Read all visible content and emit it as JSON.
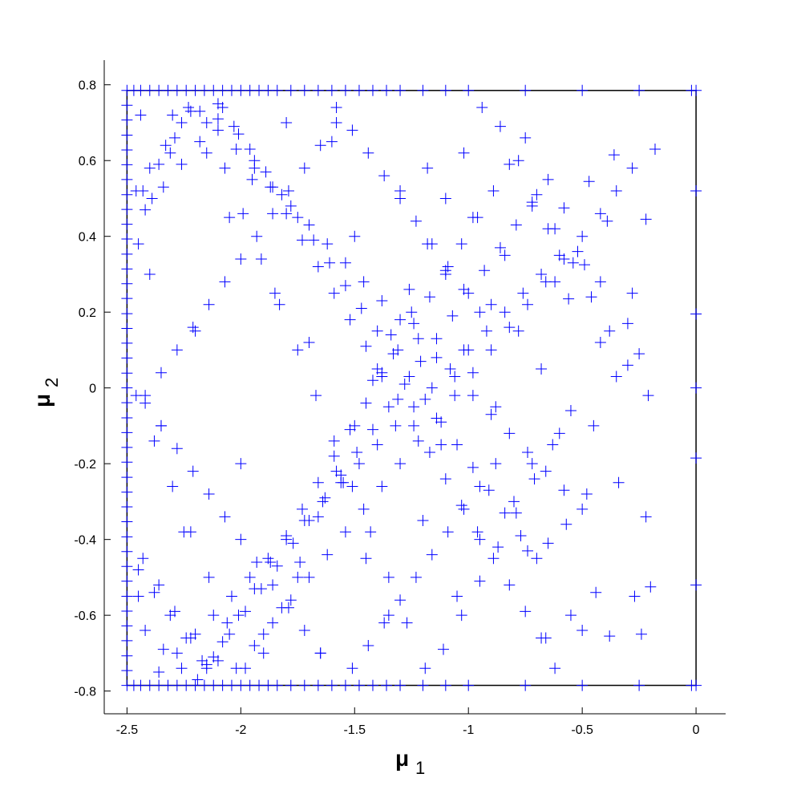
{
  "chart_data": {
    "type": "scatter",
    "title": "",
    "xlabel": {
      "symbol": "μ",
      "subscript": "1"
    },
    "ylabel": {
      "symbol": "μ",
      "subscript": "2"
    },
    "xlim": [
      -2.6,
      0.13
    ],
    "ylim": [
      -0.86,
      0.865
    ],
    "x_ticks": [
      -2.5,
      -2,
      -1.5,
      -1,
      -0.5,
      0
    ],
    "x_tick_labels": [
      "-2.5",
      "-2",
      "-1.5",
      "-1",
      "-0.5",
      "0"
    ],
    "y_ticks": [
      -0.8,
      -0.6,
      -0.4,
      -0.2,
      0,
      0.2,
      0.4,
      0.6,
      0.8
    ],
    "y_tick_labels": [
      "-0.8",
      "-0.6",
      "-0.4",
      "-0.2",
      "0",
      "0.2",
      "0.4",
      "0.6",
      "0.8"
    ],
    "grid": false,
    "marker": "+",
    "marker_color": "#0000ff",
    "domain_box": {
      "x": [
        -2.5,
        0
      ],
      "y": [
        -0.785,
        0.785
      ],
      "color": "#000000"
    },
    "series": [
      {
        "marker": "+",
        "x": [
          -2.5,
          -2.5,
          -2.5,
          -2.5,
          -2.5,
          -2.5,
          -2.5,
          -2.5,
          -2.5,
          -2.5,
          -2.5,
          -2.5,
          -2.5,
          -2.5,
          -2.5,
          -2.5,
          -2.5,
          -2.5,
          -2.5,
          -2.5,
          -2.5,
          -2.5,
          -2.5,
          -2.5,
          -2.5,
          -2.5,
          -2.5,
          -2.5,
          -2.5,
          -2.5,
          -2.5,
          -2.5,
          -2.5,
          -2.5,
          -2.5,
          -2.5,
          -2.5,
          -2.5,
          -2.5,
          -2.5,
          -2.5,
          -2.47,
          -2.44,
          -2.4,
          -2.36,
          -2.32,
          -2.28,
          -2.24,
          -2.2,
          -2.16,
          -2.12,
          -2.08,
          -2.04,
          -2.0,
          -1.96,
          -1.92,
          -1.88,
          -1.84,
          -1.78,
          -1.72,
          -1.66,
          -1.6,
          -1.54,
          -1.48,
          -1.42,
          -1.36,
          -1.3,
          -1.2,
          -1.1,
          -1.0,
          -0.75,
          -0.5,
          -0.25,
          -0.02,
          -2.47,
          -2.44,
          -2.4,
          -2.36,
          -2.32,
          -2.28,
          -2.24,
          -2.2,
          -2.16,
          -2.12,
          -2.08,
          -2.04,
          -2.0,
          -1.96,
          -1.92,
          -1.88,
          -1.84,
          -1.78,
          -1.72,
          -1.66,
          -1.6,
          -1.54,
          -1.48,
          -1.42,
          -1.36,
          -1.3,
          -1.2,
          -1.1,
          -1.0,
          -0.75,
          -0.5,
          -0.25,
          -0.02,
          0.0,
          0.0,
          0.0,
          0.0,
          0.0,
          0.0,
          0.0,
          -0.18,
          -0.22,
          -0.28,
          -0.36,
          -0.39,
          -0.49,
          -0.47,
          -0.21,
          -0.42,
          -0.56,
          -0.58,
          -0.65,
          -0.72,
          -0.22,
          -0.34,
          -0.48,
          -0.57,
          -0.65,
          -0.74,
          -0.2,
          -0.27,
          -0.44,
          -0.55,
          -0.66,
          -0.38,
          -0.24,
          -0.5,
          -0.62,
          -0.25,
          -0.3,
          -0.35,
          -0.42,
          -0.45,
          -0.52,
          -0.6,
          -0.62,
          -0.68,
          -0.72,
          -0.78,
          -0.8,
          -0.84,
          -0.88,
          -0.9,
          -0.95,
          -0.98,
          -1.02,
          -1.05,
          -1.1,
          -1.12,
          -1.18,
          -1.2,
          -1.25,
          -1.3,
          -1.35,
          -1.4,
          -1.45,
          -1.5,
          -1.55,
          -1.6,
          -1.65,
          -1.7,
          -1.75,
          -1.8,
          -1.85,
          -1.9,
          -1.95,
          -2.0,
          -2.05,
          -2.1,
          -2.15,
          -2.2,
          -2.25,
          -2.3,
          -2.35,
          -2.4,
          -2.45,
          -0.3,
          -0.38,
          -0.46,
          -0.54,
          -0.62,
          -0.7,
          -0.78,
          -0.86,
          -0.94,
          -1.02,
          -1.1,
          -1.18,
          -1.26,
          -1.34,
          -1.42,
          -1.5,
          -1.58,
          -1.66,
          -1.74,
          -1.82,
          -1.9,
          -1.98,
          -2.06,
          -2.14,
          -2.22,
          -2.3,
          -2.38,
          -2.46,
          -0.55,
          -0.63,
          -0.71,
          -0.79,
          -0.87,
          -0.95,
          -1.03,
          -1.11,
          -1.19,
          -1.27,
          -1.35,
          -1.43,
          -1.51,
          -1.59,
          -1.67,
          -1.75,
          -1.83,
          -1.91,
          -1.99,
          -2.07,
          -2.15,
          -2.23,
          -2.31,
          -2.39,
          -2.45,
          -0.65,
          -0.72,
          -0.79,
          -0.86,
          -0.93,
          -1.0,
          -1.07,
          -1.14,
          -1.21,
          -1.28,
          -1.35,
          -1.42,
          -1.49,
          -1.56,
          -1.63,
          -1.7,
          -1.77,
          -1.84,
          -1.91,
          -1.98,
          -2.05,
          -2.12,
          -2.19,
          -2.26,
          -2.33,
          -2.4,
          -2.46,
          -0.7,
          -0.77,
          -0.84,
          -0.91,
          -0.98,
          -1.05,
          -1.12,
          -1.19,
          -1.26,
          -1.33,
          -1.4,
          -1.47,
          -1.54,
          -1.61,
          -1.68,
          -1.75,
          -1.82,
          -1.89,
          -1.96,
          -2.03,
          -2.1,
          -2.17,
          -2.24,
          -2.31,
          -2.38,
          -2.45,
          -0.75,
          -0.82,
          -0.89,
          -0.96,
          -1.03,
          -1.1,
          -1.17,
          -1.24,
          -1.31,
          -1.38,
          -1.45,
          -1.52,
          -1.59,
          -1.66,
          -1.73,
          -1.8,
          -1.87,
          -1.94,
          -2.01,
          -2.08,
          -2.15,
          -2.22,
          -2.29,
          -2.36,
          -2.43,
          -0.68,
          -0.75,
          -0.82,
          -0.89,
          -0.96,
          -1.03,
          -1.1,
          -1.17,
          -1.24,
          -1.31,
          -1.38,
          -1.45,
          -1.52,
          -1.59,
          -1.66,
          -1.73,
          -1.8,
          -1.87,
          -1.94,
          -2.01,
          -2.08,
          -2.15,
          -2.22,
          -2.29,
          -2.36,
          -2.43,
          -0.6,
          -0.68,
          -0.76,
          -0.84,
          -0.92,
          -1.0,
          -1.08,
          -1.16,
          -1.24,
          -1.32,
          -1.4,
          -1.48,
          -1.56,
          -1.64,
          -1.72,
          -1.8,
          -1.88,
          -1.96,
          -2.04,
          -2.12,
          -2.2,
          -2.28,
          -2.36,
          -2.44,
          -0.5,
          -0.58,
          -0.66,
          -0.74,
          -0.82,
          -0.9,
          -0.98,
          -1.06,
          -1.14,
          -1.22,
          -1.3,
          -1.38,
          -1.46,
          -1.54,
          -1.62,
          -1.7,
          -1.78,
          -1.86,
          -1.94,
          -2.02,
          -2.1,
          -2.18,
          -2.26,
          -2.34,
          -2.42,
          -0.28,
          -0.35,
          -0.42,
          -0.5,
          -0.58,
          -0.66,
          -0.74,
          -0.82,
          -0.9,
          -0.98,
          -1.06,
          -1.14,
          -1.22,
          -1.3,
          -1.38,
          -1.46,
          -1.54,
          -1.62,
          -1.7,
          -1.78,
          -1.86,
          -1.94,
          -2.02,
          -2.1,
          -2.18,
          -2.26,
          -2.34,
          -2.42,
          -0.95,
          -1.02,
          -1.09,
          -1.16,
          -1.23,
          -1.3,
          -1.37,
          -1.44,
          -1.51,
          -1.58,
          -1.65,
          -1.72,
          -1.79,
          -1.86,
          -1.93,
          -2.0,
          -2.07,
          -2.14,
          -2.21,
          -2.28,
          -2.35,
          -2.42,
          -0.88,
          -0.95,
          -1.02,
          -1.09,
          -1.16,
          -1.23,
          -1.3,
          -1.37,
          -1.44,
          -1.51,
          -1.58,
          -1.65,
          -1.72,
          -1.79,
          -1.86,
          -1.93,
          -2.0,
          -2.07,
          -2.14,
          -2.21,
          -2.28,
          -2.35,
          -2.42
        ],
        "y": [
          0.785,
          0.746,
          0.707,
          0.667,
          0.628,
          0.589,
          0.55,
          0.51,
          0.471,
          0.432,
          0.393,
          0.353,
          0.314,
          0.275,
          0.236,
          0.196,
          0.157,
          0.118,
          0.079,
          0.039,
          0.0,
          -0.039,
          -0.079,
          -0.118,
          -0.157,
          -0.196,
          -0.236,
          -0.275,
          -0.314,
          -0.353,
          -0.393,
          -0.432,
          -0.471,
          -0.51,
          -0.55,
          -0.589,
          -0.628,
          -0.667,
          -0.707,
          -0.746,
          -0.785,
          0.785,
          0.785,
          0.785,
          0.785,
          0.785,
          0.785,
          0.785,
          0.785,
          0.785,
          0.785,
          0.785,
          0.785,
          0.785,
          0.785,
          0.785,
          0.785,
          0.785,
          0.785,
          0.785,
          0.785,
          0.785,
          0.785,
          0.785,
          0.785,
          0.785,
          0.785,
          0.785,
          0.785,
          0.785,
          0.785,
          0.785,
          0.785,
          0.785,
          -0.785,
          -0.785,
          -0.785,
          -0.785,
          -0.785,
          -0.785,
          -0.785,
          -0.785,
          -0.785,
          -0.785,
          -0.785,
          -0.785,
          -0.785,
          -0.785,
          -0.785,
          -0.785,
          -0.785,
          -0.785,
          -0.785,
          -0.785,
          -0.785,
          -0.785,
          -0.785,
          -0.785,
          -0.785,
          -0.785,
          -0.785,
          -0.785,
          -0.785,
          -0.785,
          -0.785,
          -0.785,
          -0.785,
          0.785,
          0.52,
          0.195,
          -0.185,
          -0.52,
          -0.785,
          0.0,
          0.63,
          0.445,
          0.25,
          0.615,
          0.44,
          0.325,
          0.545,
          -0.02,
          0.12,
          0.235,
          0.475,
          0.42,
          0.48,
          -0.34,
          -0.25,
          -0.28,
          -0.36,
          -0.41,
          -0.43,
          -0.525,
          -0.55,
          -0.54,
          -0.6,
          -0.66,
          -0.655,
          -0.65,
          -0.64,
          -0.74,
          0.09,
          0.17,
          0.03,
          0.28,
          -0.1,
          0.36,
          -0.12,
          0.28,
          0.05,
          -0.2,
          0.15,
          -0.3,
          0.35,
          -0.05,
          0.22,
          -0.4,
          0.45,
          0.1,
          -0.55,
          0.3,
          -0.15,
          0.58,
          -0.35,
          0.2,
          0.52,
          -0.6,
          0.05,
          -0.45,
          0.4,
          -0.25,
          0.65,
          -0.7,
          0.12,
          -0.5,
          0.7,
          0.25,
          -0.65,
          0.55,
          -0.2,
          0.45,
          -0.72,
          0.62,
          0.15,
          -0.38,
          0.72,
          -0.1,
          0.3,
          -0.55,
          0.06,
          0.15,
          0.24,
          0.33,
          0.42,
          0.51,
          0.6,
          0.69,
          0.74,
          0.62,
          0.5,
          0.38,
          0.26,
          0.14,
          0.02,
          -0.1,
          -0.22,
          -0.34,
          -0.46,
          -0.58,
          -0.7,
          -0.74,
          -0.62,
          -0.5,
          -0.38,
          -0.26,
          -0.14,
          -0.02,
          -0.06,
          -0.15,
          -0.24,
          -0.33,
          -0.42,
          -0.51,
          -0.6,
          -0.69,
          -0.74,
          -0.62,
          -0.5,
          -0.38,
          -0.26,
          -0.14,
          -0.02,
          0.1,
          0.22,
          0.34,
          0.46,
          0.58,
          0.7,
          0.74,
          0.62,
          0.5,
          0.38,
          0.55,
          0.49,
          0.43,
          0.37,
          0.31,
          0.25,
          0.19,
          0.13,
          0.07,
          0.01,
          -0.05,
          -0.11,
          -0.17,
          -0.23,
          -0.29,
          -0.35,
          -0.41,
          -0.47,
          -0.53,
          -0.59,
          -0.65,
          -0.71,
          -0.77,
          0.7,
          0.64,
          0.58,
          0.52,
          -0.45,
          -0.39,
          -0.33,
          -0.27,
          -0.21,
          -0.15,
          -0.09,
          -0.03,
          0.03,
          0.09,
          0.15,
          0.21,
          0.27,
          0.33,
          0.39,
          0.45,
          0.51,
          0.57,
          0.63,
          0.69,
          0.75,
          -0.72,
          -0.66,
          -0.6,
          -0.54,
          -0.48,
          0.66,
          0.59,
          0.52,
          0.45,
          0.38,
          0.31,
          0.24,
          0.17,
          0.1,
          0.03,
          -0.04,
          -0.11,
          -0.18,
          -0.25,
          -0.32,
          -0.39,
          -0.46,
          -0.53,
          -0.6,
          -0.67,
          -0.74,
          0.73,
          0.66,
          0.59,
          0.52,
          -0.66,
          -0.59,
          -0.52,
          -0.45,
          -0.38,
          -0.31,
          -0.24,
          -0.17,
          -0.1,
          -0.03,
          0.04,
          0.11,
          0.18,
          0.25,
          0.32,
          0.39,
          0.46,
          0.53,
          0.6,
          0.67,
          0.74,
          -0.73,
          -0.66,
          -0.59,
          -0.52,
          -0.45,
          0.35,
          0.3,
          0.25,
          0.2,
          0.15,
          0.1,
          0.05,
          0.0,
          -0.05,
          -0.1,
          -0.15,
          -0.2,
          -0.25,
          -0.3,
          -0.35,
          -0.4,
          -0.45,
          -0.5,
          -0.55,
          -0.6,
          -0.65,
          -0.7,
          -0.75,
          0.72,
          -0.32,
          -0.27,
          -0.22,
          -0.17,
          -0.12,
          -0.07,
          -0.02,
          0.03,
          0.08,
          0.13,
          0.18,
          0.23,
          0.28,
          0.33,
          0.38,
          0.43,
          0.48,
          0.53,
          0.58,
          0.63,
          0.68,
          0.73,
          -0.74,
          -0.69,
          -0.64,
          0.58,
          0.52,
          0.46,
          0.4,
          0.34,
          0.28,
          0.22,
          0.16,
          0.1,
          0.04,
          -0.02,
          -0.08,
          -0.14,
          -0.2,
          -0.26,
          -0.32,
          -0.38,
          -0.44,
          -0.5,
          -0.56,
          -0.62,
          -0.68,
          -0.74,
          0.71,
          0.65,
          0.59,
          0.53,
          0.47,
          0.2,
          0.26,
          0.32,
          0.38,
          0.44,
          0.5,
          0.56,
          0.62,
          0.68,
          0.74,
          -0.7,
          -0.64,
          -0.58,
          -0.52,
          -0.46,
          -0.4,
          -0.34,
          -0.28,
          -0.22,
          -0.16,
          -0.1,
          -0.04,
          -0.2,
          -0.26,
          -0.32,
          -0.38,
          -0.44,
          -0.5,
          -0.56,
          -0.62,
          -0.68,
          -0.74,
          0.7,
          0.64,
          0.58,
          0.52,
          0.46,
          0.4,
          0.34,
          0.28,
          0.22,
          0.16,
          0.1,
          0.04,
          -0.02
        ]
      }
    ]
  }
}
